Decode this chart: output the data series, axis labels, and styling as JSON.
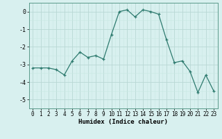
{
  "x": [
    0,
    1,
    2,
    3,
    4,
    5,
    6,
    7,
    8,
    9,
    10,
    11,
    12,
    13,
    14,
    15,
    16,
    17,
    18,
    19,
    20,
    21,
    22,
    23
  ],
  "y": [
    -3.2,
    -3.2,
    -3.2,
    -3.3,
    -3.6,
    -2.8,
    -2.3,
    -2.6,
    -2.5,
    -2.7,
    -1.3,
    0.0,
    0.1,
    -0.3,
    0.1,
    0.0,
    -0.15,
    -1.6,
    -2.9,
    -2.8,
    -3.4,
    -4.6,
    -3.6,
    -4.5
  ],
  "xlabel": "Humidex (Indice chaleur)",
  "ylim": [
    -5.5,
    0.5
  ],
  "xlim": [
    -0.5,
    23.5
  ],
  "yticks": [
    0,
    -1,
    -2,
    -3,
    -4,
    -5
  ],
  "xticks": [
    0,
    1,
    2,
    3,
    4,
    5,
    6,
    7,
    8,
    9,
    10,
    11,
    12,
    13,
    14,
    15,
    16,
    17,
    18,
    19,
    20,
    21,
    22,
    23
  ],
  "line_color": "#2d7a6e",
  "marker_color": "#2d7a6e",
  "bg_color": "#d8f0ef",
  "grid_color_major": "#b8d8d4",
  "grid_color_minor": "#c8e8e4",
  "xlabel_fontsize": 6.5,
  "tick_fontsize": 5.5
}
